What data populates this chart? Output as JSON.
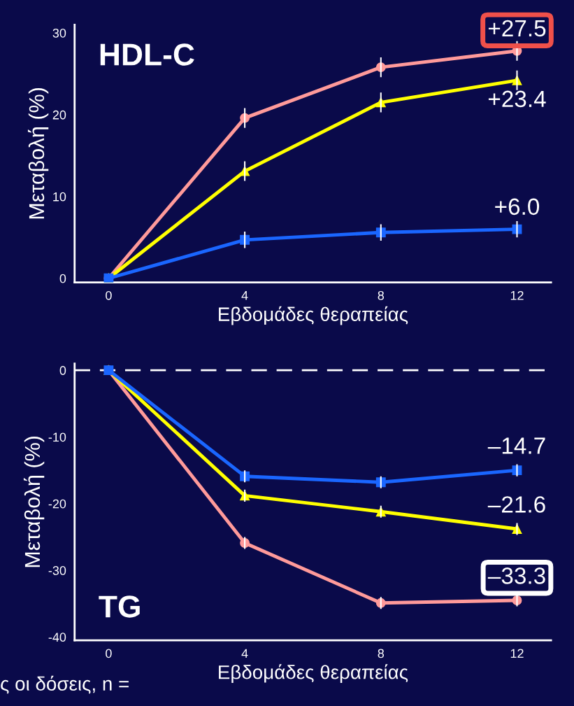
{
  "chart_data": [
    {
      "type": "line",
      "title": "HDL-C",
      "xlabel": "Εβδομάδες θεραπείας",
      "ylabel": "Μεταβολή (%)",
      "x": [
        0,
        4,
        8,
        12
      ],
      "xlim": [
        -1,
        13
      ],
      "xticks": [
        0,
        4,
        8,
        12
      ],
      "ylim": [
        -0.5,
        31
      ],
      "yticks": [
        0,
        10,
        20,
        30
      ],
      "grid": false,
      "legend": false,
      "series": [
        {
          "color": "#ff9a9a",
          "marker": "circle",
          "values": [
            0,
            19.6,
            25.8,
            27.8
          ],
          "errors": [
            null,
            1.2,
            1.2,
            1.2
          ]
        },
        {
          "color": "#ffff00",
          "marker": "triangle",
          "values": [
            0,
            13.1,
            21.5,
            24.2
          ],
          "errors": [
            null,
            1.2,
            1.2,
            1.2
          ]
        },
        {
          "color": "#1a66ff",
          "marker": "square",
          "values": [
            0,
            4.7,
            5.6,
            6.0
          ],
          "errors": [
            null,
            1.0,
            1.0,
            1.0
          ]
        }
      ],
      "annotations": [
        "+27.5",
        "+23.4",
        "+6.0"
      ]
    },
    {
      "type": "line",
      "title": "TG",
      "xlabel": "Εβδομάδες θεραπείας",
      "ylabel": "Μεταβολή (%)",
      "x": [
        0,
        4,
        8,
        12
      ],
      "xlim": [
        -1,
        13
      ],
      "xticks": [
        0,
        4,
        8,
        12
      ],
      "ylim": [
        -40.5,
        1
      ],
      "yticks": [
        0,
        -10,
        -20,
        -30,
        -40
      ],
      "grid": false,
      "legend": false,
      "ref_lines": [
        {
          "axis": "y",
          "value": 0,
          "color": "#ffffff",
          "line_style": "dashed"
        }
      ],
      "series": [
        {
          "color": "#ff9a9a",
          "marker": "circle",
          "values": [
            0,
            -25.9,
            -34.9,
            -34.5
          ],
          "errors": [
            null,
            0.9,
            0.9,
            0.9
          ]
        },
        {
          "color": "#ffff00",
          "marker": "triangle",
          "values": [
            0,
            -18.8,
            -21.2,
            -23.8
          ],
          "errors": [
            null,
            0.9,
            0.9,
            0.9
          ]
        },
        {
          "color": "#1a66ff",
          "marker": "square",
          "values": [
            0,
            -15.9,
            -16.8,
            -15.0
          ],
          "errors": [
            null,
            0.9,
            0.9,
            0.9
          ]
        }
      ],
      "annotations": [
        "–14.7",
        "–21.6",
        "–33.3",
        "ς οι δόσεις, n ="
      ]
    }
  ]
}
